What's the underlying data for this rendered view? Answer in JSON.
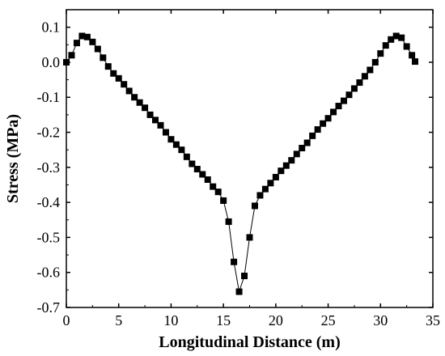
{
  "chart_data": {
    "type": "line",
    "title": "",
    "xlabel": "Longitudinal Distance (m)",
    "ylabel": "Stress (MPa)",
    "xlim": [
      0,
      35
    ],
    "ylim": [
      -0.7,
      0.15
    ],
    "xticks": [
      0,
      5,
      10,
      15,
      20,
      25,
      30,
      35
    ],
    "yticks": [
      0.1,
      0.0,
      -0.1,
      -0.2,
      -0.3,
      -0.4,
      -0.5,
      -0.6,
      -0.7
    ],
    "xtick_labels": [
      "0",
      "5",
      "10",
      "15",
      "20",
      "25",
      "30",
      "35"
    ],
    "ytick_labels": [
      "0.1",
      "0.0",
      "-0.1",
      "-0.2",
      "-0.3",
      "-0.4",
      "-0.5",
      "-0.6",
      "-0.7"
    ],
    "grid": false,
    "legend": false,
    "marker": "square",
    "color": "#000000",
    "series": [
      {
        "x": [
          0,
          0.5,
          1.0,
          1.5,
          2.0,
          2.5,
          3.0,
          3.5,
          4.0,
          4.5,
          5.0,
          5.5,
          6.0,
          6.5,
          7.0,
          7.5,
          8.0,
          8.5,
          9.0,
          9.5,
          10.0,
          10.5,
          11.0,
          11.5,
          12.0,
          12.5,
          13.0,
          13.5,
          14.0,
          14.5,
          15.0,
          15.5,
          16.0,
          16.5,
          17.0,
          17.5,
          18.0,
          18.5,
          19.0,
          19.5,
          20.0,
          20.5,
          21.0,
          21.5,
          22.0,
          22.5,
          23.0,
          23.5,
          24.0,
          24.5,
          25.0,
          25.5,
          26.0,
          26.5,
          27.0,
          27.5,
          28.0,
          28.5,
          29.0,
          29.5,
          30.0,
          30.5,
          31.0,
          31.5,
          32.0,
          32.5,
          33.0,
          33.3
        ],
        "y": [
          0.0,
          0.02,
          0.055,
          0.075,
          0.072,
          0.058,
          0.038,
          0.013,
          -0.012,
          -0.032,
          -0.046,
          -0.063,
          -0.082,
          -0.1,
          -0.115,
          -0.13,
          -0.15,
          -0.165,
          -0.18,
          -0.2,
          -0.22,
          -0.235,
          -0.25,
          -0.27,
          -0.29,
          -0.305,
          -0.32,
          -0.335,
          -0.355,
          -0.37,
          -0.395,
          -0.455,
          -0.57,
          -0.655,
          -0.61,
          -0.5,
          -0.41,
          -0.38,
          -0.362,
          -0.345,
          -0.328,
          -0.31,
          -0.295,
          -0.28,
          -0.262,
          -0.245,
          -0.23,
          -0.21,
          -0.192,
          -0.175,
          -0.16,
          -0.142,
          -0.125,
          -0.11,
          -0.093,
          -0.075,
          -0.058,
          -0.04,
          -0.022,
          0.0,
          0.025,
          0.048,
          0.065,
          0.075,
          0.07,
          0.045,
          0.02,
          0.002
        ]
      }
    ]
  }
}
